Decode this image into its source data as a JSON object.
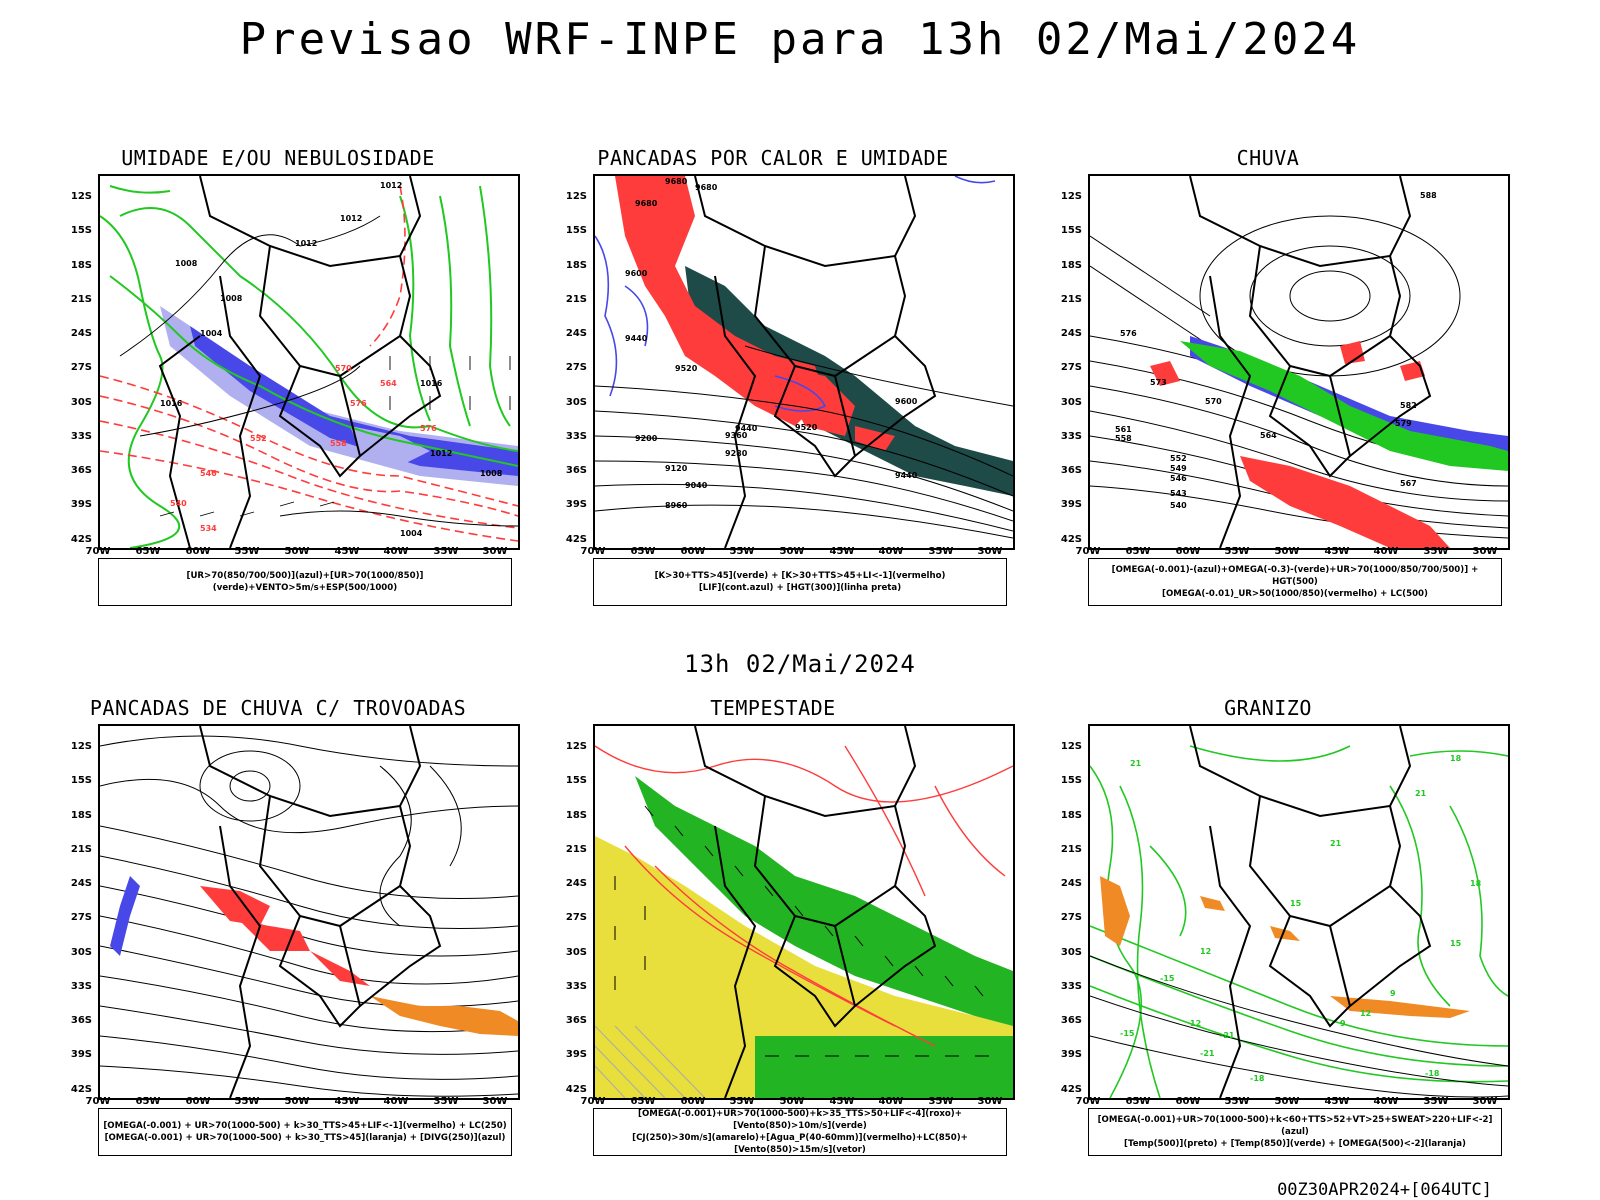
{
  "header": {
    "title": "Previsao WRF-INPE  para 13h 02/Mai/2024",
    "subtitle": "13h 02/Mai/2024",
    "run_label": "00Z30APR2024+[064UTC]"
  },
  "axes": {
    "lat_labels": [
      "12S",
      "15S",
      "18S",
      "21S",
      "24S",
      "27S",
      "30S",
      "33S",
      "36S",
      "39S",
      "42S"
    ],
    "lon_labels": [
      "70W",
      "65W",
      "60W",
      "55W",
      "50W",
      "45W",
      "40W",
      "35W",
      "30W"
    ]
  },
  "colors": {
    "blue": "#4848e8",
    "light_blue": "#b0b0f0",
    "green": "#22c822",
    "red": "#ff3c3c",
    "dark_teal": "#1e4a48",
    "orange": "#f08a24",
    "yellow": "#e8de3c",
    "bright_green": "#22b422"
  },
  "panels": [
    {
      "title": "UMIDADE E/OU NEBULOSIDADE",
      "caption_lines": [
        "[UR>70(850/700/500)](azul)+[UR>70(1000/850)](verde)+VENTO>5m/s+ESP(500/1000)"
      ],
      "contour_labels": [
        "1012",
        "1012",
        "1012",
        "1008",
        "1008",
        "1004",
        "1016",
        "1016",
        "1012",
        "1008",
        "1004",
        "576",
        "576",
        "570",
        "564",
        "558",
        "552",
        "546",
        "540",
        "534"
      ]
    },
    {
      "title": "PANCADAS POR CALOR E UMIDADE",
      "caption_lines": [
        "[K>30+TTS>45](verde) + [K>30+TTS>45+LI<-1](vermelho)",
        "[LIF](cont.azul) + [HGT(300)](linha preta)"
      ],
      "contour_labels": [
        "9680",
        "9680",
        "9680",
        "9600",
        "9520",
        "9440",
        "9600",
        "9520",
        "9440",
        "9360",
        "9280",
        "9200",
        "9120",
        "9040",
        "8960",
        "9440"
      ]
    },
    {
      "title": "CHUVA",
      "caption_lines": [
        "[OMEGA(-0.001)-(azul)+OMEGA(-0.3)-(verde)+UR>70(1000/850/700/500)] + HGT(500)",
        "[OMEGA(-0.01)_UR>50(1000/850)(vermelho) + LC(500)"
      ],
      "contour_labels": [
        "588",
        "582",
        "579",
        "576",
        "573",
        "570",
        "567",
        "564",
        "561",
        "558",
        "552",
        "549",
        "546",
        "543",
        "540"
      ]
    },
    {
      "title": "PANCADAS DE CHUVA C/ TROVOADAS",
      "caption_lines": [
        "[OMEGA(-0.001) + UR>70(1000-500) + k>30_TTS>45+LIF<-1](vermelho) + LC(250)",
        "[OMEGA(-0.001) + UR>70(1000-500) + k>30_TTS>45](laranja) + [DIVG(250)](azul)"
      ],
      "contour_labels": []
    },
    {
      "title": "TEMPESTADE",
      "caption_lines": [
        "[OMEGA(-0.001)+UR>70(1000-500)+k>35_TTS>50+LIF<-4](roxo)+[Vento(850)>10m/s](verde)",
        "[CJ(250)>30m/s](amarelo)+[Agua_P(40-60mm)](vermelho)+LC(850)+[Vento(850)>15m/s](vetor)"
      ],
      "contour_labels": []
    },
    {
      "title": "GRANIZO",
      "caption_lines": [
        "[OMEGA(-0.001)+UR>70(1000-500)+k<60+TTS>52+VT>25+SWEAT>220+LIF<-2](azul)",
        "[Temp(500)](preto) + [Temp(850)](verde) + [OMEGA(500)<-2](laranja)"
      ],
      "contour_labels": [
        "18",
        "21",
        "21",
        "21",
        "18",
        "15",
        "12",
        "15",
        "12",
        "9",
        "12",
        "9",
        "-15",
        "-21",
        "-18",
        "-15",
        "-21",
        "-18"
      ]
    }
  ]
}
